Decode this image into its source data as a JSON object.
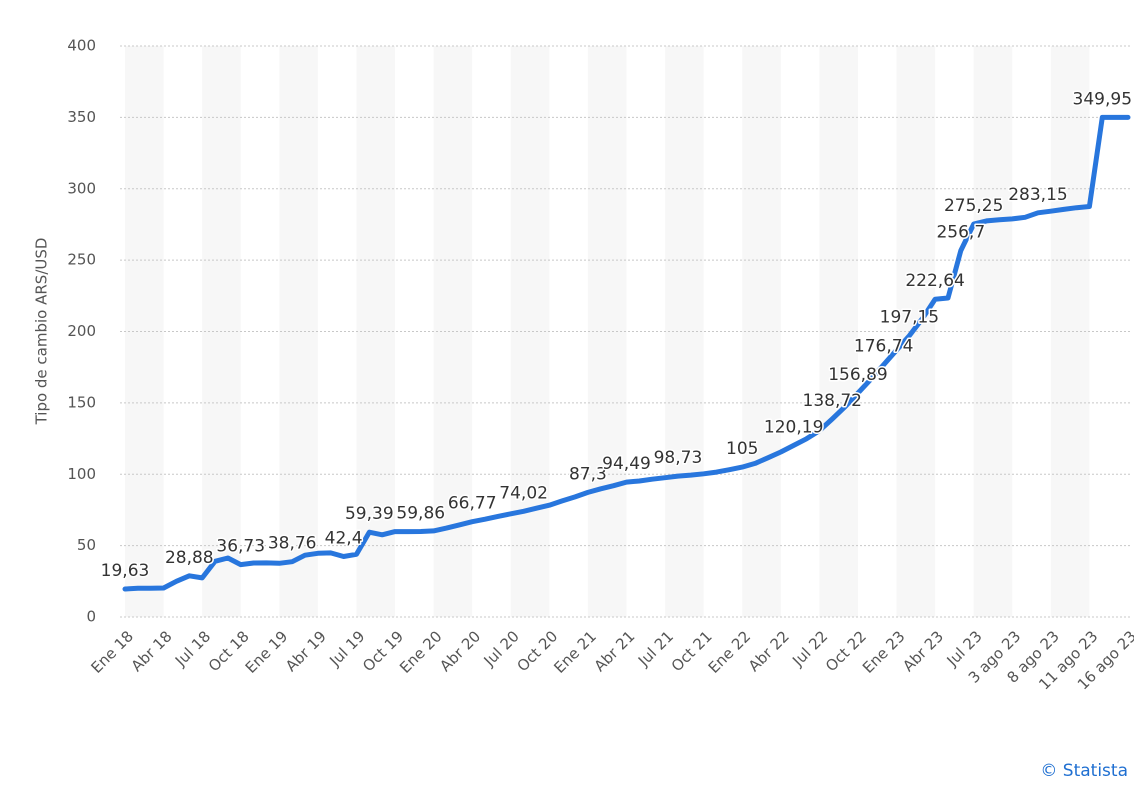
{
  "chart_data": {
    "type": "line",
    "y_label": "Tipo de cambio ARS/USD",
    "credit": "© Statista",
    "categories": [
      "Ene 18",
      null,
      null,
      "Abr 18",
      null,
      null,
      "Jul 18",
      null,
      null,
      "Oct 18",
      null,
      null,
      "Ene 19",
      null,
      null,
      "Abr 19",
      null,
      null,
      "Jul 19",
      null,
      null,
      "Oct 19",
      null,
      null,
      "Ene 20",
      null,
      null,
      "Abr 20",
      null,
      null,
      "Jul 20",
      null,
      null,
      "Oct 20",
      null,
      null,
      "Ene 21",
      null,
      null,
      "Abr 21",
      null,
      null,
      "Jul 21",
      null,
      null,
      "Oct 21",
      null,
      null,
      "Ene 22",
      null,
      null,
      "Abr 22",
      null,
      null,
      "Jul 22",
      null,
      null,
      "Oct 22",
      null,
      null,
      "Ene 23",
      null,
      null,
      "Abr 23",
      null,
      null,
      "Jul 23",
      null,
      null,
      "3 ago 23",
      null,
      null,
      "8 ago 23",
      null,
      null,
      "11 ago 23",
      null,
      null,
      "16 ago 23"
    ],
    "series": [
      {
        "name": "Tipo de cambio",
        "color": "#2876dd",
        "values": [
          19.63,
          20.1,
          20.2,
          20.3,
          25.0,
          28.88,
          27.4,
          39.0,
          41.3,
          36.73,
          37.8,
          37.9,
          37.6,
          38.76,
          43.3,
          44.6,
          44.9,
          42.4,
          43.9,
          59.39,
          57.6,
          59.8,
          59.8,
          59.86,
          60.3,
          62.3,
          64.5,
          66.77,
          68.5,
          70.5,
          72.3,
          74.02,
          76.2,
          78.3,
          81.3,
          84.1,
          87.3,
          89.8,
          92.0,
          94.49,
          95.3,
          96.5,
          97.6,
          98.73,
          99.4,
          100.3,
          101.5,
          103.2,
          105,
          107.6,
          111.5,
          115.6,
          120.19,
          124.8,
          130.5,
          138.72,
          147.3,
          156.89,
          166.5,
          176.74,
          186.9,
          197.15,
          209.0,
          222.64,
          223.5,
          256.7,
          275.25,
          277.5,
          278.3,
          278.9,
          280.0,
          283.15,
          284.3,
          285.5,
          286.7,
          287.6,
          349.95,
          349.95,
          349.95
        ],
        "value_labels": [
          "19,63",
          null,
          null,
          null,
          null,
          "28,88",
          null,
          null,
          null,
          "36,73",
          null,
          null,
          null,
          "38,76",
          null,
          null,
          null,
          "42,4",
          null,
          "59,39",
          null,
          null,
          null,
          "59,86",
          null,
          null,
          null,
          "66,77",
          null,
          null,
          null,
          "74,02",
          null,
          null,
          null,
          null,
          "87,3",
          null,
          null,
          "94,49",
          null,
          null,
          null,
          "98,73",
          null,
          null,
          null,
          null,
          "105",
          null,
          null,
          null,
          "120,19",
          null,
          null,
          "138,72",
          null,
          "156,89",
          null,
          "176,74",
          null,
          "197,15",
          null,
          "222,64",
          null,
          "256,7",
          "275,25",
          null,
          null,
          null,
          null,
          "283,15",
          null,
          null,
          null,
          null,
          "349,95",
          null,
          null
        ]
      }
    ],
    "ylim": [
      0,
      400
    ],
    "yticks": [
      0,
      50,
      100,
      150,
      200,
      250,
      300,
      350,
      400
    ],
    "grid": true
  }
}
